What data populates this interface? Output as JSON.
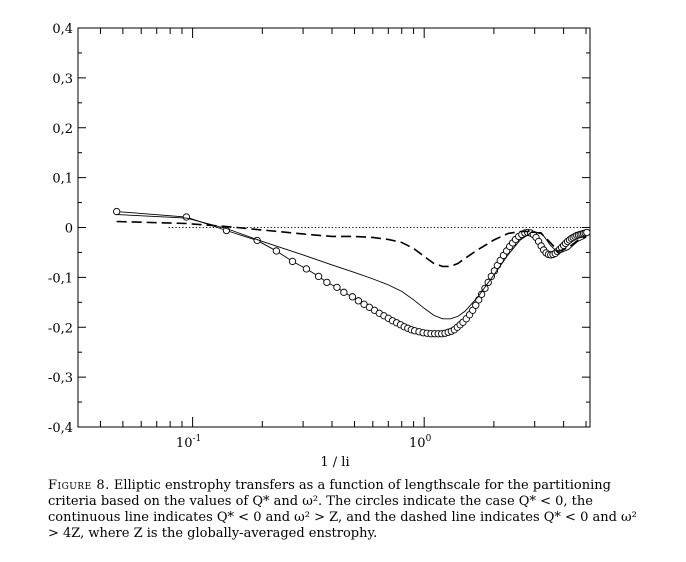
{
  "chart_data": {
    "type": "line",
    "xscale": "log",
    "xlim": [
      0.032,
      5.2
    ],
    "ylim": [
      -0.4,
      0.4
    ],
    "xlabel": "1 / li",
    "ylabel": "",
    "x_ticks": [
      {
        "value": 0.1,
        "base": "10",
        "exp": "-1"
      },
      {
        "value": 1.0,
        "base": "10",
        "exp": "0"
      }
    ],
    "y_ticks": [
      {
        "value": 0.4,
        "label": "0,4"
      },
      {
        "value": 0.3,
        "label": "0,3"
      },
      {
        "value": 0.2,
        "label": "0,2"
      },
      {
        "value": 0.1,
        "label": "0,1"
      },
      {
        "value": 0.0,
        "label": "0"
      },
      {
        "value": -0.1,
        "label": "-0,1"
      },
      {
        "value": -0.2,
        "label": "-0,2"
      },
      {
        "value": -0.3,
        "label": "-0,3"
      },
      {
        "value": -0.4,
        "label": "-0,4"
      }
    ],
    "reference_line": {
      "y": 0,
      "style": "dotted"
    },
    "series": [
      {
        "name": "Q* < 0 (circles)",
        "style": "circles",
        "x": [
          0.047,
          0.094,
          0.14,
          0.19,
          0.23,
          0.27,
          0.31,
          0.35,
          0.38,
          0.42,
          0.45,
          0.49,
          0.52,
          0.55,
          0.58,
          0.61,
          0.64,
          0.67,
          0.7,
          0.73,
          0.76,
          0.79,
          0.82,
          0.85,
          0.88,
          0.91,
          0.95,
          0.99,
          1.03,
          1.07,
          1.11,
          1.15,
          1.19,
          1.23,
          1.27,
          1.31,
          1.35,
          1.39,
          1.43,
          1.47,
          1.52,
          1.57,
          1.62,
          1.67,
          1.72,
          1.77,
          1.83,
          1.89,
          1.95,
          2.01,
          2.07,
          2.13,
          2.2,
          2.27,
          2.34,
          2.41,
          2.48,
          2.56,
          2.64,
          2.72,
          2.8,
          2.88,
          2.96,
          3.04,
          3.12,
          3.2,
          3.28,
          3.36,
          3.44,
          3.52,
          3.6,
          3.68,
          3.76,
          3.84,
          3.92,
          4.0,
          4.08,
          4.16,
          4.24,
          4.32,
          4.4,
          4.48,
          4.56,
          4.64,
          4.72,
          4.8,
          4.88,
          4.96,
          5.04
        ],
        "y": [
          0.032,
          0.021,
          -0.006,
          -0.026,
          -0.047,
          -0.068,
          -0.083,
          -0.098,
          -0.11,
          -0.12,
          -0.13,
          -0.139,
          -0.147,
          -0.154,
          -0.16,
          -0.166,
          -0.172,
          -0.177,
          -0.182,
          -0.187,
          -0.191,
          -0.195,
          -0.199,
          -0.202,
          -0.205,
          -0.207,
          -0.209,
          -0.211,
          -0.212,
          -0.213,
          -0.213,
          -0.213,
          -0.213,
          -0.212,
          -0.21,
          -0.208,
          -0.205,
          -0.2,
          -0.195,
          -0.19,
          -0.183,
          -0.175,
          -0.166,
          -0.156,
          -0.145,
          -0.134,
          -0.122,
          -0.11,
          -0.098,
          -0.087,
          -0.076,
          -0.066,
          -0.056,
          -0.047,
          -0.038,
          -0.031,
          -0.024,
          -0.018,
          -0.014,
          -0.011,
          -0.01,
          -0.011,
          -0.014,
          -0.02,
          -0.028,
          -0.037,
          -0.045,
          -0.051,
          -0.054,
          -0.055,
          -0.054,
          -0.052,
          -0.048,
          -0.044,
          -0.04,
          -0.036,
          -0.032,
          -0.028,
          -0.025,
          -0.022,
          -0.02,
          -0.018,
          -0.016,
          -0.015,
          -0.014,
          -0.013,
          -0.012,
          -0.011,
          -0.01
        ]
      },
      {
        "name": "Q* < 0 and ω² > Z (continuous line)",
        "style": "solid",
        "x": [
          0.047,
          0.094,
          0.14,
          0.2,
          0.3,
          0.4,
          0.5,
          0.6,
          0.7,
          0.8,
          0.9,
          1.0,
          1.1,
          1.2,
          1.3,
          1.4,
          1.5,
          1.7,
          2.0,
          2.3,
          2.6,
          2.9,
          3.2,
          3.5,
          3.8,
          4.2,
          4.6,
          5.0
        ],
        "y": [
          0.026,
          0.019,
          -0.002,
          -0.028,
          -0.055,
          -0.075,
          -0.09,
          -0.103,
          -0.115,
          -0.128,
          -0.145,
          -0.162,
          -0.176,
          -0.183,
          -0.183,
          -0.178,
          -0.168,
          -0.14,
          -0.095,
          -0.055,
          -0.025,
          -0.01,
          -0.01,
          -0.035,
          -0.052,
          -0.044,
          -0.028,
          -0.02
        ]
      },
      {
        "name": "Q* < 0 and ω² > 4Z (dashed line)",
        "style": "dashed",
        "x": [
          0.047,
          0.094,
          0.14,
          0.2,
          0.3,
          0.4,
          0.5,
          0.6,
          0.7,
          0.8,
          0.9,
          1.0,
          1.1,
          1.2,
          1.3,
          1.4,
          1.5,
          1.7,
          2.0,
          2.3,
          2.6,
          2.9,
          3.2,
          3.5,
          3.8,
          4.2,
          4.6,
          5.0
        ],
        "y": [
          0.012,
          0.008,
          0.002,
          -0.005,
          -0.013,
          -0.018,
          -0.018,
          -0.02,
          -0.024,
          -0.03,
          -0.042,
          -0.058,
          -0.072,
          -0.078,
          -0.078,
          -0.072,
          -0.062,
          -0.045,
          -0.025,
          -0.012,
          -0.008,
          -0.008,
          -0.012,
          -0.03,
          -0.048,
          -0.04,
          -0.026,
          -0.018
        ]
      }
    ]
  },
  "caption": {
    "label": "Figure 8.",
    "text": "Elliptic enstrophy transfers as a function of lengthscale for the partitioning criteria based on the values of Q* and ω². The circles indicate the case Q* < 0, the continuous line indicates Q* < 0 and ω² > Z, and the dashed line indicates Q* < 0 and ω² > 4Z, where Z is the globally-averaged enstrophy."
  }
}
